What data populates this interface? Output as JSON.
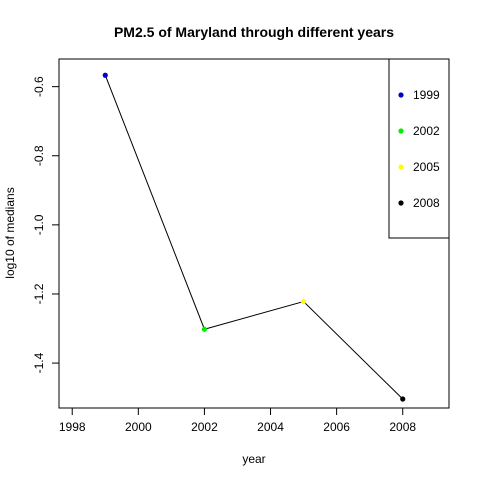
{
  "chart_data": {
    "type": "line",
    "title": "PM2.5 of Maryland through different years",
    "xlabel": "year",
    "ylabel": "log10 of medians",
    "xlim": [
      1997.6,
      2009.4
    ],
    "ylim": [
      -1.53,
      -0.52
    ],
    "x_ticks": [
      1998,
      2000,
      2002,
      2004,
      2006,
      2008
    ],
    "y_ticks": [
      -1.4,
      -1.2,
      -1.0,
      -0.8,
      -0.6
    ],
    "y_tick_labels": [
      "-1.4",
      "-1.2",
      "-1.0",
      "-0.8",
      "-0.6"
    ],
    "x": [
      1999,
      2002,
      2005,
      2008
    ],
    "y": [
      -0.567,
      -1.302,
      -1.222,
      -1.504
    ],
    "point_colors": [
      "#0000cd",
      "#00ee00",
      "#ffff00",
      "#000000"
    ],
    "line_color": "#000000",
    "grid": false,
    "legend_position": "top-right",
    "legend": [
      {
        "label": "1999",
        "color": "#0000cd"
      },
      {
        "label": "2002",
        "color": "#00ee00"
      },
      {
        "label": "2005",
        "color": "#ffff00"
      },
      {
        "label": "2008",
        "color": "#000000"
      }
    ]
  }
}
